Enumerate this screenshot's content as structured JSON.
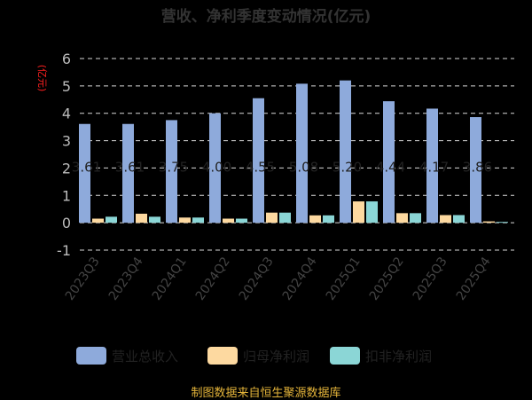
{
  "footer": "制图数据来自恒生聚源数据库",
  "chart_data": {
    "type": "bar",
    "title": "营收、净利季度变动情况(亿元)",
    "ylabel": "(亿元)",
    "xlabel": "",
    "ylim": [
      -1,
      6
    ],
    "yticks": [
      -1,
      0,
      1,
      2,
      3,
      4,
      5,
      6
    ],
    "grid": true,
    "legend_position": "bottom",
    "categories": [
      "2023Q3",
      "2023Q4",
      "2024Q1",
      "2024Q2",
      "2024Q3",
      "2024Q4",
      "2025Q1",
      "2025Q2",
      "2025Q3",
      "2025Q4"
    ],
    "series": [
      {
        "name": "营业总收入",
        "color": "#8eaadb",
        "values": [
          3.61,
          3.61,
          3.75,
          4.0,
          4.55,
          5.08,
          5.2,
          4.44,
          4.17,
          3.86
        ]
      },
      {
        "name": "归母净利润",
        "color": "#fdd9a0",
        "values": [
          0.15,
          0.33,
          0.19,
          0.15,
          0.37,
          0.27,
          0.78,
          0.35,
          0.28,
          0.05
        ]
      },
      {
        "name": "扣非净利润",
        "color": "#8bd6d6",
        "values": [
          0.22,
          0.22,
          0.19,
          0.15,
          0.37,
          0.27,
          0.78,
          0.35,
          0.28,
          0.03
        ]
      }
    ],
    "data_labels": [
      "3.61",
      "3.61",
      "3.75",
      "4.00",
      "4.55",
      "5.08",
      "5.20",
      "4.44",
      "4.17",
      "3.86"
    ]
  }
}
